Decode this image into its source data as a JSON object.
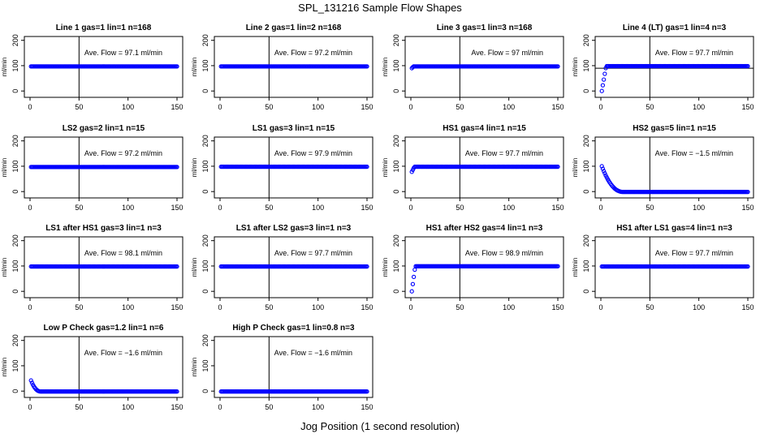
{
  "figure": {
    "title": "SPL_131216  Sample Flow Shapes",
    "xlabel": "Jog Position (1 second resolution)"
  },
  "colors": {
    "points": "#0000ff",
    "axes": "#000000"
  },
  "chart_data": [
    {
      "type": "scatter",
      "title": "Line 1 gas=1 lin=1 n=168",
      "ylabel": "ml/min",
      "annotation": "Ave. Flow = 97.1  ml/min",
      "xlim": [
        0,
        150
      ],
      "ylim": [
        -25,
        215
      ],
      "xticks": [
        0,
        50,
        100,
        150
      ],
      "yticks": [
        0,
        100,
        200
      ],
      "vline": 50,
      "hline": null,
      "shape": "flat",
      "steady": 97,
      "start": 97,
      "settle": 0
    },
    {
      "type": "scatter",
      "title": "Line 2 gas=1 lin=2 n=168",
      "ylabel": "ml/min",
      "annotation": "Ave. Flow = 97.2  ml/min",
      "xlim": [
        0,
        150
      ],
      "ylim": [
        -25,
        215
      ],
      "xticks": [
        0,
        50,
        100,
        150
      ],
      "yticks": [
        0,
        100,
        200
      ],
      "vline": 50,
      "hline": null,
      "shape": "flat",
      "steady": 97,
      "start": 97,
      "settle": 0
    },
    {
      "type": "scatter",
      "title": "Line 3 gas=1 lin=3 n=168",
      "ylabel": "ml/min",
      "annotation": "Ave. Flow = 97  ml/min",
      "xlim": [
        0,
        150
      ],
      "ylim": [
        -25,
        215
      ],
      "xticks": [
        0,
        50,
        100,
        150
      ],
      "yticks": [
        0,
        100,
        200
      ],
      "vline": 50,
      "hline": null,
      "shape": "rise",
      "steady": 97,
      "start": 90,
      "settle": 3
    },
    {
      "type": "scatter",
      "title": "Line 4 (LT) gas=1 lin=4 n=3",
      "ylabel": "ml/min",
      "annotation": "Ave. Flow = 97.7  ml/min",
      "xlim": [
        0,
        150
      ],
      "ylim": [
        -25,
        215
      ],
      "xticks": [
        0,
        50,
        100,
        150
      ],
      "yticks": [
        0,
        100,
        200
      ],
      "vline": 50,
      "hline": 90,
      "shape": "rise",
      "steady": 98,
      "start": 0,
      "settle": 6
    },
    {
      "type": "scatter",
      "title": "LS2 gas=2 lin=1 n=15",
      "ylabel": "ml/min",
      "annotation": "Ave. Flow = 97.2  ml/min",
      "xlim": [
        0,
        150
      ],
      "ylim": [
        -25,
        215
      ],
      "xticks": [
        0,
        50,
        100,
        150
      ],
      "yticks": [
        0,
        100,
        200
      ],
      "vline": 50,
      "hline": null,
      "shape": "flat",
      "steady": 97,
      "start": 97,
      "settle": 0
    },
    {
      "type": "scatter",
      "title": "LS1 gas=3 lin=1 n=15",
      "ylabel": "ml/min",
      "annotation": "Ave. Flow = 97.9  ml/min",
      "xlim": [
        0,
        150
      ],
      "ylim": [
        -25,
        215
      ],
      "xticks": [
        0,
        50,
        100,
        150
      ],
      "yticks": [
        0,
        100,
        200
      ],
      "vline": 50,
      "hline": null,
      "shape": "flat",
      "steady": 98,
      "start": 98,
      "settle": 0
    },
    {
      "type": "scatter",
      "title": "HS1 gas=4 lin=1 n=15",
      "ylabel": "ml/min",
      "annotation": "Ave. Flow = 97.7  ml/min",
      "xlim": [
        0,
        150
      ],
      "ylim": [
        -25,
        215
      ],
      "xticks": [
        0,
        50,
        100,
        150
      ],
      "yticks": [
        0,
        100,
        200
      ],
      "vline": 50,
      "hline": null,
      "shape": "rise",
      "steady": 98,
      "start": 78,
      "settle": 4
    },
    {
      "type": "scatter",
      "title": "HS2 gas=5 lin=1 n=15",
      "ylabel": "ml/min",
      "annotation": "Ave. Flow = −1.5  ml/min",
      "xlim": [
        0,
        150
      ],
      "ylim": [
        -25,
        215
      ],
      "xticks": [
        0,
        50,
        100,
        150
      ],
      "yticks": [
        0,
        100,
        200
      ],
      "vline": 50,
      "hline": null,
      "shape": "decay",
      "steady": -1.5,
      "start": 100,
      "settle": 22
    },
    {
      "type": "scatter",
      "title": "LS1 after HS1 gas=3 lin=1 n=3",
      "ylabel": "ml/min",
      "annotation": "Ave. Flow = 98.1  ml/min",
      "xlim": [
        0,
        150
      ],
      "ylim": [
        -25,
        215
      ],
      "xticks": [
        0,
        50,
        100,
        150
      ],
      "yticks": [
        0,
        100,
        200
      ],
      "vline": 50,
      "hline": null,
      "shape": "flat",
      "steady": 98,
      "start": 98,
      "settle": 0
    },
    {
      "type": "scatter",
      "title": "LS1 after LS2 gas=3 lin=1 n=3",
      "ylabel": "ml/min",
      "annotation": "Ave. Flow = 97.7  ml/min",
      "xlim": [
        0,
        150
      ],
      "ylim": [
        -25,
        215
      ],
      "xticks": [
        0,
        50,
        100,
        150
      ],
      "yticks": [
        0,
        100,
        200
      ],
      "vline": 50,
      "hline": null,
      "shape": "flat",
      "steady": 98,
      "start": 98,
      "settle": 0
    },
    {
      "type": "scatter",
      "title": "HS1 after HS2 gas=4 lin=1 n=3",
      "ylabel": "ml/min",
      "annotation": "Ave. Flow = 98.9  ml/min",
      "xlim": [
        0,
        150
      ],
      "ylim": [
        -25,
        215
      ],
      "xticks": [
        0,
        50,
        100,
        150
      ],
      "yticks": [
        0,
        100,
        200
      ],
      "vline": 50,
      "hline": null,
      "shape": "rise",
      "steady": 99,
      "start": 0,
      "settle": 5
    },
    {
      "type": "scatter",
      "title": "HS1 after LS1 gas=4 lin=1 n=3",
      "ylabel": "ml/min",
      "annotation": "Ave. Flow = 97.7  ml/min",
      "xlim": [
        0,
        150
      ],
      "ylim": [
        -25,
        215
      ],
      "xticks": [
        0,
        50,
        100,
        150
      ],
      "yticks": [
        0,
        100,
        200
      ],
      "vline": 50,
      "hline": null,
      "shape": "flat",
      "steady": 98,
      "start": 98,
      "settle": 0
    },
    {
      "type": "scatter",
      "title": "Low P Check gas=1.2 lin=1 n=6",
      "ylabel": "ml/min",
      "annotation": "Ave. Flow = −1.6  ml/min",
      "xlim": [
        0,
        150
      ],
      "ylim": [
        -25,
        215
      ],
      "xticks": [
        0,
        50,
        100,
        150
      ],
      "yticks": [
        0,
        100,
        200
      ],
      "vline": 50,
      "hline": null,
      "shape": "decay",
      "steady": -1.6,
      "start": 42,
      "settle": 10
    },
    {
      "type": "scatter",
      "title": "High P Check gas=1 lin=0.8 n=3",
      "ylabel": "ml/min",
      "annotation": "Ave. Flow = −1.6  ml/min",
      "xlim": [
        0,
        150
      ],
      "ylim": [
        -25,
        215
      ],
      "xticks": [
        0,
        50,
        100,
        150
      ],
      "yticks": [
        0,
        100,
        200
      ],
      "vline": 50,
      "hline": null,
      "shape": "flat",
      "steady": -1.6,
      "start": -1.6,
      "settle": 0
    }
  ]
}
